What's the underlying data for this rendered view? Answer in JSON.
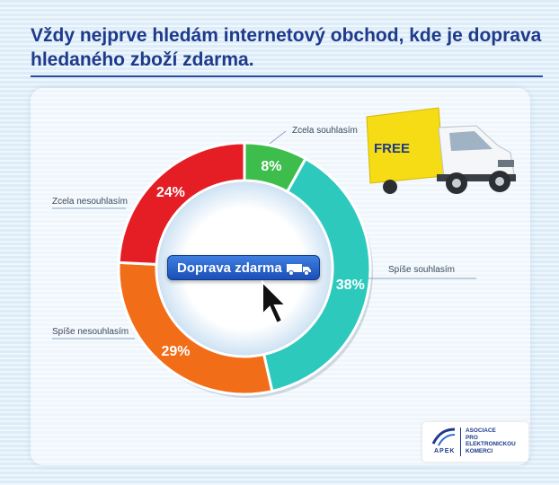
{
  "title": "Vždy nejprve hledám internetový obchod, kde je doprava hledaného zboží zdarma.",
  "button_label": "Doprava zdarma",
  "truck_text": "FREE",
  "logo": {
    "name": "APEK",
    "text": "ASOCIACE\nPRO\nELEKTRONICKOU\nKOMERCI"
  },
  "chart_data": {
    "type": "pie",
    "variant": "donut",
    "categories": [
      "Zcela souhlasím",
      "Spíše souhlasím",
      "Spíše nesouhlasím",
      "Zcela nesouhlasím"
    ],
    "values": [
      8,
      38,
      29,
      24
    ],
    "value_labels": [
      "8%",
      "38%",
      "29%",
      "24%"
    ],
    "colors": [
      "#3dbd4c",
      "#2ec9bd",
      "#f26d18",
      "#e51d25"
    ],
    "legend": "callout-labels"
  }
}
